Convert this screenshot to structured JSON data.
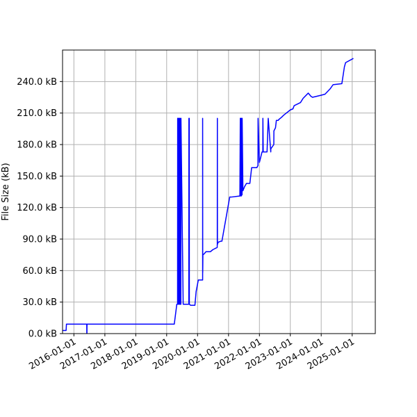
{
  "chart_data": {
    "type": "line",
    "title": "",
    "xlabel": "",
    "ylabel": "File Size (kB)",
    "x_axis": "date",
    "xlim": [
      "2015-08-20",
      "2025-10-01"
    ],
    "ylim": [
      0,
      270
    ],
    "grid": true,
    "legend": "none",
    "line_color": "#0000ff",
    "grid_color": "#b0b0b0",
    "x_ticks": [
      "2016-01-01",
      "2017-01-01",
      "2018-01-01",
      "2019-01-01",
      "2020-01-01",
      "2021-01-01",
      "2022-01-01",
      "2023-01-01",
      "2024-01-01",
      "2025-01-01"
    ],
    "x_tick_labels": [
      "2016-01-01",
      "2017-01-01",
      "2018-01-01",
      "2019-01-01",
      "2020-01-01",
      "2021-01-01",
      "2022-01-01",
      "2023-01-01",
      "2024-01-01",
      "2025-01-01"
    ],
    "y_ticks": [
      0,
      30,
      60,
      90,
      120,
      150,
      180,
      210,
      240
    ],
    "y_tick_labels": [
      "0.0 kB",
      "30.0 kB",
      "60.0 kB",
      "90.0 kB",
      "120.0 kB",
      "150.0 kB",
      "180.0 kB",
      "210.0 kB",
      "240.0 kB"
    ],
    "series": [
      {
        "x": [
          "2015-08-20",
          "2015-10-01",
          "2015-10-05",
          "2016-01-01",
          "2016-02-15",
          "2016-06-01",
          "2016-06-02",
          "2016-06-03",
          "2016-06-04",
          "2017-01-01",
          "2018-01-01",
          "2019-04-01",
          "2019-05-01",
          "2019-05-10",
          "2019-05-11",
          "2019-05-20",
          "2019-05-21",
          "2019-05-30",
          "2019-05-31",
          "2019-06-08",
          "2019-06-09",
          "2019-06-18",
          "2019-06-19",
          "2019-07-15",
          "2019-09-20",
          "2019-09-21",
          "2019-09-25",
          "2019-09-26",
          "2019-10-10",
          "2019-12-01",
          "2019-12-15",
          "2020-01-10",
          "2020-03-01",
          "2020-03-01",
          "2020-03-02",
          "2020-03-03",
          "2020-03-04",
          "2020-03-20",
          "2020-04-10",
          "2020-06-01",
          "2020-07-01",
          "2020-08-20",
          "2020-08-21",
          "2020-08-22",
          "2020-08-23",
          "2020-09-01",
          "2020-10-01",
          "2020-10-15",
          "2021-01-15",
          "2021-02-01",
          "2021-05-15",
          "2021-05-20",
          "2021-05-21",
          "2021-05-25",
          "2021-06-01",
          "2021-06-02",
          "2021-06-10",
          "2021-06-11",
          "2021-06-20",
          "2021-07-10",
          "2021-08-01",
          "2021-09-10",
          "2021-10-01",
          "2021-12-01",
          "2021-12-15",
          "2021-12-16",
          "2022-01-01",
          "2022-02-01",
          "2022-02-10",
          "2022-02-11",
          "2022-02-15",
          "2022-04-01",
          "2022-04-15",
          "2022-05-15",
          "2022-05-16",
          "2022-06-20",
          "2022-06-21",
          "2022-07-10",
          "2022-07-20",
          "2022-08-10",
          "2022-08-20",
          "2022-09-20",
          "2022-10-15",
          "2023-01-01",
          "2023-02-01",
          "2023-02-15",
          "2023-05-01",
          "2023-06-01",
          "2023-08-01",
          "2023-09-01",
          "2023-09-20",
          "2024-01-01",
          "2024-02-15",
          "2024-04-15",
          "2024-05-20",
          "2024-09-01",
          "2024-10-01",
          "2024-10-15",
          "2025-01-15"
        ],
        "y": [
          3,
          3,
          9,
          9,
          9,
          9,
          -2,
          -2,
          9,
          9,
          9,
          9,
          28,
          28,
          205,
          205,
          28,
          28,
          205,
          205,
          28,
          28,
          205,
          28,
          28,
          205,
          205,
          28,
          27,
          27,
          40,
          51,
          51,
          205,
          58,
          65,
          75,
          76,
          78,
          78,
          80,
          82,
          85,
          205,
          85,
          87,
          88,
          88,
          130,
          130,
          131,
          205,
          131,
          205,
          131,
          205,
          132,
          205,
          136,
          140,
          143,
          143,
          158,
          158,
          160,
          205,
          163,
          173,
          173,
          205,
          173,
          173,
          205,
          173,
          176,
          180,
          193,
          196,
          203,
          203,
          204,
          206,
          208,
          213,
          214,
          217,
          220,
          224,
          229,
          226,
          225,
          227,
          228,
          233,
          237,
          238,
          254,
          258,
          262
        ]
      }
    ]
  }
}
